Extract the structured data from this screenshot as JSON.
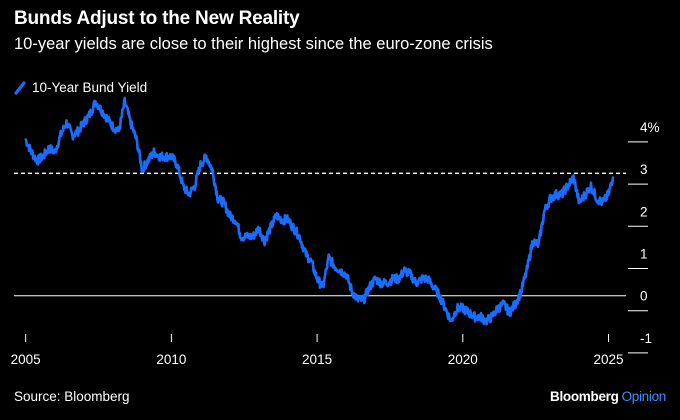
{
  "header": {
    "title": "Bunds Adjust to the New Reality",
    "subtitle": "10-year yields are close to their highest since the euro-zone crisis"
  },
  "footer": {
    "source": "Source: Bloomberg",
    "brand_primary": "Bloomberg",
    "brand_secondary": "Opinion"
  },
  "colors": {
    "background": "#000000",
    "series": "#1a6cff",
    "text": "#ffffff",
    "brand_accent": "#3d8bff"
  },
  "chart_data": {
    "type": "line",
    "title": "Bunds Adjust to the New Reality",
    "subtitle": "10-year yields are close to their highest since the euro-zone crisis",
    "xlabel": "",
    "ylabel": "",
    "xlim": [
      2004.6,
      2025.6
    ],
    "ylim": [
      -1.05,
      4.4
    ],
    "x_ticks": [
      "2005",
      "2010",
      "2015",
      "2020",
      "2025"
    ],
    "y_ticks": [
      "4%",
      "3",
      "2",
      "1",
      "0",
      "-1"
    ],
    "y_tick_values": [
      4,
      3,
      2,
      1,
      0,
      -1
    ],
    "x_tick_values": [
      2005,
      2010,
      2015,
      2020,
      2025
    ],
    "grid": false,
    "legend_position": "top-left",
    "reference_lines": [
      {
        "y": 2.9,
        "style": "dashed"
      },
      {
        "y": 0,
        "style": "solid"
      }
    ],
    "series": [
      {
        "name": "10-Year Bund Yield",
        "x": [
          2005.0,
          2005.2,
          2005.4,
          2005.6,
          2005.8,
          2006.0,
          2006.2,
          2006.4,
          2006.6,
          2006.8,
          2007.0,
          2007.2,
          2007.4,
          2007.6,
          2007.8,
          2008.0,
          2008.2,
          2008.4,
          2008.6,
          2008.8,
          2009.0,
          2009.2,
          2009.4,
          2009.6,
          2009.8,
          2010.0,
          2010.2,
          2010.4,
          2010.6,
          2010.8,
          2011.0,
          2011.2,
          2011.4,
          2011.6,
          2011.8,
          2012.0,
          2012.2,
          2012.4,
          2012.6,
          2012.8,
          2013.0,
          2013.2,
          2013.4,
          2013.6,
          2013.8,
          2014.0,
          2014.2,
          2014.4,
          2014.6,
          2014.8,
          2015.0,
          2015.2,
          2015.4,
          2015.6,
          2015.8,
          2016.0,
          2016.2,
          2016.4,
          2016.6,
          2016.8,
          2017.0,
          2017.2,
          2017.4,
          2017.6,
          2017.8,
          2018.0,
          2018.2,
          2018.4,
          2018.6,
          2018.8,
          2019.0,
          2019.2,
          2019.4,
          2019.6,
          2019.8,
          2020.0,
          2020.2,
          2020.4,
          2020.6,
          2020.8,
          2021.0,
          2021.2,
          2021.4,
          2021.6,
          2021.8,
          2022.0,
          2022.2,
          2022.4,
          2022.6,
          2022.8,
          2023.0,
          2023.2,
          2023.4,
          2023.6,
          2023.8,
          2024.0,
          2024.2,
          2024.4,
          2024.6,
          2024.8,
          2025.0,
          2025.15
        ],
        "values": [
          3.7,
          3.4,
          3.2,
          3.3,
          3.5,
          3.4,
          3.8,
          4.1,
          3.8,
          3.9,
          4.1,
          4.3,
          4.6,
          4.4,
          4.2,
          4.0,
          3.9,
          4.6,
          4.1,
          3.7,
          3.0,
          3.2,
          3.4,
          3.3,
          3.3,
          3.3,
          3.1,
          2.6,
          2.4,
          2.6,
          3.1,
          3.3,
          3.0,
          2.3,
          2.2,
          1.9,
          1.8,
          1.4,
          1.4,
          1.4,
          1.6,
          1.3,
          1.6,
          1.9,
          1.8,
          1.8,
          1.6,
          1.4,
          1.0,
          0.8,
          0.4,
          0.2,
          0.9,
          0.7,
          0.6,
          0.5,
          0.1,
          -0.1,
          -0.1,
          0.2,
          0.4,
          0.3,
          0.3,
          0.4,
          0.4,
          0.6,
          0.5,
          0.3,
          0.4,
          0.4,
          0.2,
          0.0,
          -0.3,
          -0.6,
          -0.3,
          -0.3,
          -0.4,
          -0.5,
          -0.5,
          -0.6,
          -0.5,
          -0.3,
          -0.2,
          -0.4,
          -0.2,
          0.1,
          0.6,
          1.3,
          1.2,
          2.0,
          2.3,
          2.4,
          2.4,
          2.6,
          2.8,
          2.2,
          2.4,
          2.6,
          2.3,
          2.2,
          2.4,
          2.8
        ]
      }
    ]
  }
}
